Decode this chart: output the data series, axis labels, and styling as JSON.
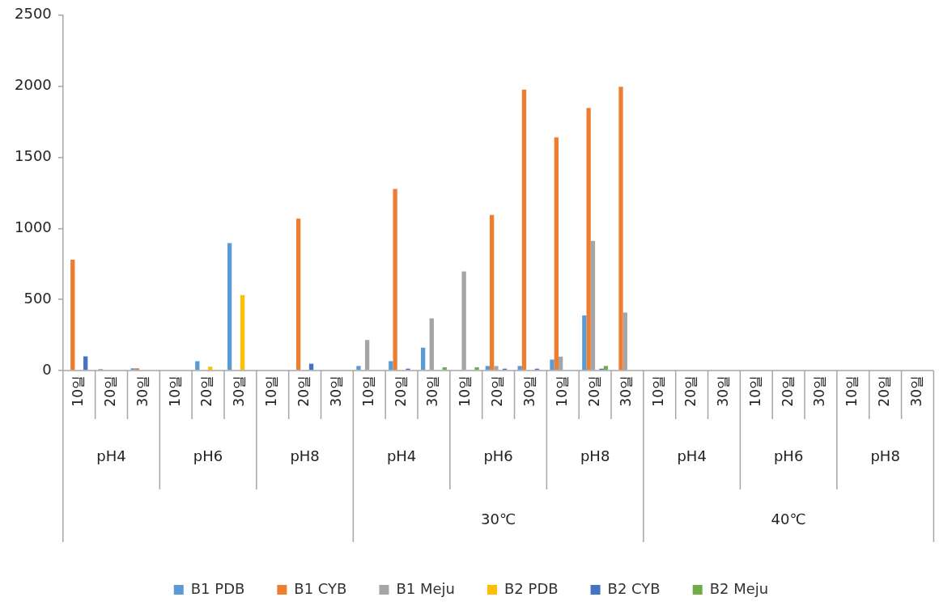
{
  "chart_data": {
    "type": "bar",
    "categories": [
      "10일",
      "20일",
      "30일",
      "10일",
      "20일",
      "30일",
      "10일",
      "20일",
      "30일",
      "10일",
      "20일",
      "30일",
      "10일",
      "20일",
      "30일",
      "10일",
      "20일",
      "30일",
      "10일",
      "20일",
      "30일",
      "10일",
      "20일",
      "30일",
      "10일",
      "20일",
      "30일"
    ],
    "series": [
      {
        "name": "B1 PDB",
        "color": "#5b9bd5",
        "values": [
          0,
          10,
          15,
          0,
          65,
          896,
          0,
          0,
          0,
          32,
          66,
          161,
          0,
          32,
          32,
          77,
          388,
          0,
          0,
          0,
          0,
          0,
          0,
          0,
          0,
          0,
          0
        ]
      },
      {
        "name": "B1 CYB",
        "color": "#ed7d31",
        "values": [
          780,
          0,
          15,
          0,
          0,
          0,
          0,
          1068,
          0,
          0,
          1278,
          0,
          0,
          1094,
          1976,
          1641,
          1847,
          1997,
          0,
          0,
          0,
          0,
          0,
          0,
          0,
          0,
          0
        ]
      },
      {
        "name": "B1 Meju",
        "color": "#a5a5a5",
        "values": [
          0,
          0,
          0,
          0,
          0,
          0,
          0,
          0,
          0,
          215,
          0,
          367,
          697,
          32,
          0,
          98,
          912,
          408,
          0,
          0,
          0,
          0,
          0,
          0,
          0,
          0,
          0
        ]
      },
      {
        "name": "B2 PDB",
        "color": "#ffc000",
        "values": [
          0,
          0,
          0,
          0,
          27,
          531,
          0,
          0,
          0,
          0,
          0,
          0,
          0,
          0,
          0,
          0,
          0,
          0,
          0,
          0,
          0,
          0,
          0,
          0,
          0,
          0,
          0
        ]
      },
      {
        "name": "B2 CYB",
        "color": "#4472c4",
        "values": [
          100,
          0,
          0,
          0,
          0,
          0,
          0,
          48,
          0,
          0,
          13,
          0,
          0,
          13,
          13,
          0,
          13,
          0,
          0,
          0,
          0,
          0,
          0,
          0,
          0,
          0,
          0
        ]
      },
      {
        "name": "B2 Meju",
        "color": "#70ad47",
        "values": [
          0,
          0,
          0,
          0,
          0,
          0,
          0,
          0,
          0,
          0,
          0,
          23,
          23,
          0,
          0,
          0,
          32,
          0,
          0,
          0,
          0,
          0,
          0,
          0,
          0,
          0,
          0
        ]
      }
    ],
    "annotations": [
      "pH4",
      "pH6",
      "pH8",
      "pH4",
      "pH6",
      "pH8",
      "pH4",
      "pH6",
      "pH8",
      "30℃",
      "40℃"
    ],
    "ylim": [
      0,
      2500
    ],
    "yticks": [
      0,
      500,
      1000,
      1500,
      2000,
      2500
    ],
    "grid": false,
    "legend": "bottom"
  }
}
